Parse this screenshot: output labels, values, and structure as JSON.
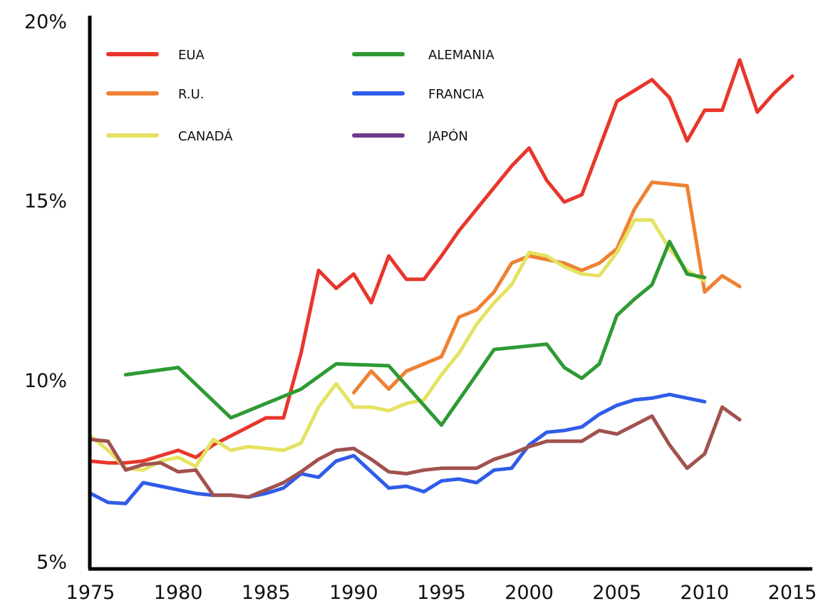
{
  "chart_data": {
    "type": "line",
    "title": "",
    "xlabel": "",
    "ylabel": "",
    "xlim": [
      1975,
      2015
    ],
    "ylim": [
      5,
      20
    ],
    "grid": false,
    "legend_position": "top-left",
    "x_ticks": [
      1975,
      1980,
      1985,
      1990,
      1995,
      2000,
      2005,
      2010,
      2015
    ],
    "y_ticks": [
      5,
      10,
      15,
      20
    ],
    "x_tick_labels": [
      "1975",
      "1980",
      "1985",
      "1990",
      "1995",
      "2000",
      "2005",
      "2010",
      "2015"
    ],
    "y_tick_labels": [
      "5%",
      "10%",
      "15%",
      "20%"
    ],
    "series": [
      {
        "name": "EUA",
        "color": "#e8362c",
        "points": [
          [
            1975,
            7.8
          ],
          [
            1976,
            7.75
          ],
          [
            1977,
            7.75
          ],
          [
            1978,
            7.8
          ],
          [
            1979,
            7.95
          ],
          [
            1980,
            8.1
          ],
          [
            1981,
            7.9
          ],
          [
            1982,
            8.25
          ],
          [
            1983,
            8.5
          ],
          [
            1984,
            8.75
          ],
          [
            1985,
            9.0
          ],
          [
            1986,
            9.0
          ],
          [
            1987,
            10.8
          ],
          [
            1988,
            13.1
          ],
          [
            1989,
            12.6
          ],
          [
            1990,
            13.0
          ],
          [
            1991,
            12.2
          ],
          [
            1992,
            13.5
          ],
          [
            1993,
            12.85
          ],
          [
            1994,
            12.85
          ],
          [
            1995,
            13.5
          ],
          [
            1996,
            14.2
          ],
          [
            1997,
            14.8
          ],
          [
            1998,
            15.4
          ],
          [
            1999,
            16.0
          ],
          [
            2000,
            16.5
          ],
          [
            2001,
            15.6
          ],
          [
            2002,
            15.0
          ],
          [
            2003,
            15.2
          ],
          [
            2004,
            16.5
          ],
          [
            2005,
            17.8
          ],
          [
            2006,
            18.1
          ],
          [
            2007,
            18.4
          ],
          [
            2008,
            17.9
          ],
          [
            2009,
            16.7
          ],
          [
            2010,
            17.55
          ],
          [
            2011,
            17.55
          ],
          [
            2012,
            18.95
          ],
          [
            2013,
            17.5
          ],
          [
            2014,
            18.05
          ],
          [
            2015,
            18.5
          ]
        ]
      },
      {
        "name": "R.U.",
        "color": "#ee8132",
        "points": [
          [
            1990,
            9.7
          ],
          [
            1991,
            10.3
          ],
          [
            1992,
            9.8
          ],
          [
            1993,
            10.3
          ],
          [
            1994,
            10.5
          ],
          [
            1995,
            10.7
          ],
          [
            1996,
            11.8
          ],
          [
            1997,
            12.0
          ],
          [
            1998,
            12.5
          ],
          [
            1999,
            13.3
          ],
          [
            2000,
            13.5
          ],
          [
            2001,
            13.4
          ],
          [
            2002,
            13.3
          ],
          [
            2003,
            13.1
          ],
          [
            2004,
            13.3
          ],
          [
            2005,
            13.7
          ],
          [
            2006,
            14.8
          ],
          [
            2007,
            15.55
          ],
          [
            2008,
            15.5
          ],
          [
            2009,
            15.45
          ],
          [
            2010,
            12.5
          ],
          [
            2011,
            12.95
          ],
          [
            2012,
            12.65
          ]
        ]
      },
      {
        "name": "CANADÁ",
        "color": "#e5e262",
        "points": [
          [
            1975,
            8.5
          ],
          [
            1976,
            8.1
          ],
          [
            1977,
            7.6
          ],
          [
            1978,
            7.55
          ],
          [
            1979,
            7.8
          ],
          [
            1980,
            7.9
          ],
          [
            1981,
            7.65
          ],
          [
            1982,
            8.4
          ],
          [
            1983,
            8.1
          ],
          [
            1984,
            8.2
          ],
          [
            1985,
            8.15
          ],
          [
            1986,
            8.1
          ],
          [
            1987,
            8.3
          ],
          [
            1988,
            9.3
          ],
          [
            1989,
            9.95
          ],
          [
            1990,
            9.3
          ],
          [
            1991,
            9.3
          ],
          [
            1992,
            9.2
          ],
          [
            1993,
            9.4
          ],
          [
            1994,
            9.5
          ],
          [
            1995,
            10.2
          ],
          [
            1996,
            10.8
          ],
          [
            1997,
            11.6
          ],
          [
            1998,
            12.2
          ],
          [
            1999,
            12.7
          ],
          [
            2000,
            13.6
          ],
          [
            2001,
            13.5
          ],
          [
            2002,
            13.2
          ],
          [
            2003,
            13.0
          ],
          [
            2004,
            12.95
          ],
          [
            2005,
            13.6
          ],
          [
            2006,
            14.5
          ],
          [
            2007,
            14.5
          ],
          [
            2008,
            13.7
          ],
          [
            2009,
            13.1
          ],
          [
            2010,
            12.8
          ]
        ]
      },
      {
        "name": "ALEMANIA",
        "color": "#2e9a34",
        "points": [
          [
            1977,
            10.2
          ],
          [
            1980,
            10.4
          ],
          [
            1983,
            9.0
          ],
          [
            1987,
            9.8
          ],
          [
            1989,
            10.5
          ],
          [
            1992,
            10.45
          ],
          [
            1995,
            8.8
          ],
          [
            1998,
            10.9
          ],
          [
            2001,
            11.05
          ],
          [
            2002,
            10.4
          ],
          [
            2003,
            10.1
          ],
          [
            2004,
            10.5
          ],
          [
            2005,
            11.85
          ],
          [
            2006,
            12.3
          ],
          [
            2007,
            12.7
          ],
          [
            2008,
            13.9
          ],
          [
            2009,
            13.0
          ],
          [
            2010,
            12.9
          ]
        ]
      },
      {
        "name": "FRANCIA",
        "color": "#2f5ce8",
        "points": [
          [
            1975,
            6.9
          ],
          [
            1976,
            6.65
          ],
          [
            1977,
            6.62
          ],
          [
            1978,
            7.2
          ],
          [
            1979,
            7.1
          ],
          [
            1980,
            7.0
          ],
          [
            1981,
            6.9
          ],
          [
            1982,
            6.85
          ],
          [
            1983,
            6.85
          ],
          [
            1984,
            6.8
          ],
          [
            1985,
            6.9
          ],
          [
            1986,
            7.05
          ],
          [
            1987,
            7.45
          ],
          [
            1988,
            7.35
          ],
          [
            1989,
            7.8
          ],
          [
            1990,
            7.95
          ],
          [
            1991,
            7.5
          ],
          [
            1992,
            7.05
          ],
          [
            1993,
            7.1
          ],
          [
            1994,
            6.95
          ],
          [
            1995,
            7.25
          ],
          [
            1996,
            7.3
          ],
          [
            1997,
            7.2
          ],
          [
            1998,
            7.55
          ],
          [
            1999,
            7.6
          ],
          [
            2000,
            8.25
          ],
          [
            2001,
            8.6
          ],
          [
            2002,
            8.65
          ],
          [
            2003,
            8.75
          ],
          [
            2004,
            9.1
          ],
          [
            2005,
            9.35
          ],
          [
            2006,
            9.5
          ],
          [
            2007,
            9.55
          ],
          [
            2008,
            9.65
          ],
          [
            2009,
            9.55
          ],
          [
            2010,
            9.45
          ]
        ]
      },
      {
        "name": "JAPÓN",
        "color": "#a0524e",
        "points": [
          [
            1975,
            8.4
          ],
          [
            1976,
            8.35
          ],
          [
            1977,
            7.55
          ],
          [
            1978,
            7.7
          ],
          [
            1979,
            7.75
          ],
          [
            1980,
            7.5
          ],
          [
            1981,
            7.55
          ],
          [
            1982,
            6.85
          ],
          [
            1983,
            6.85
          ],
          [
            1984,
            6.8
          ],
          [
            1985,
            7.0
          ],
          [
            1986,
            7.2
          ],
          [
            1987,
            7.5
          ],
          [
            1988,
            7.85
          ],
          [
            1989,
            8.1
          ],
          [
            1990,
            8.15
          ],
          [
            1991,
            7.85
          ],
          [
            1992,
            7.5
          ],
          [
            1993,
            7.45
          ],
          [
            1994,
            7.55
          ],
          [
            1995,
            7.6
          ],
          [
            1996,
            7.6
          ],
          [
            1997,
            7.6
          ],
          [
            1998,
            7.85
          ],
          [
            1999,
            8.0
          ],
          [
            2000,
            8.2
          ],
          [
            2001,
            8.35
          ],
          [
            2002,
            8.35
          ],
          [
            2003,
            8.35
          ],
          [
            2004,
            8.65
          ],
          [
            2005,
            8.55
          ],
          [
            2006,
            8.8
          ],
          [
            2007,
            9.05
          ],
          [
            2008,
            8.25
          ],
          [
            2009,
            7.6
          ],
          [
            2010,
            8.0
          ],
          [
            2011,
            9.3
          ],
          [
            2012,
            8.95
          ]
        ]
      }
    ]
  },
  "legend": {
    "items": [
      {
        "label": "EUA",
        "color": "#e8362c"
      },
      {
        "label": "R.U.",
        "color": "#ee8132"
      },
      {
        "label": "CANADÁ",
        "color": "#e5e262"
      },
      {
        "label": "ALEMANIA",
        "color": "#2e9a34"
      },
      {
        "label": "FRANCIA",
        "color": "#2f5ce8"
      },
      {
        "label": "JAPÓN",
        "color": "#6e3a8a"
      }
    ]
  }
}
